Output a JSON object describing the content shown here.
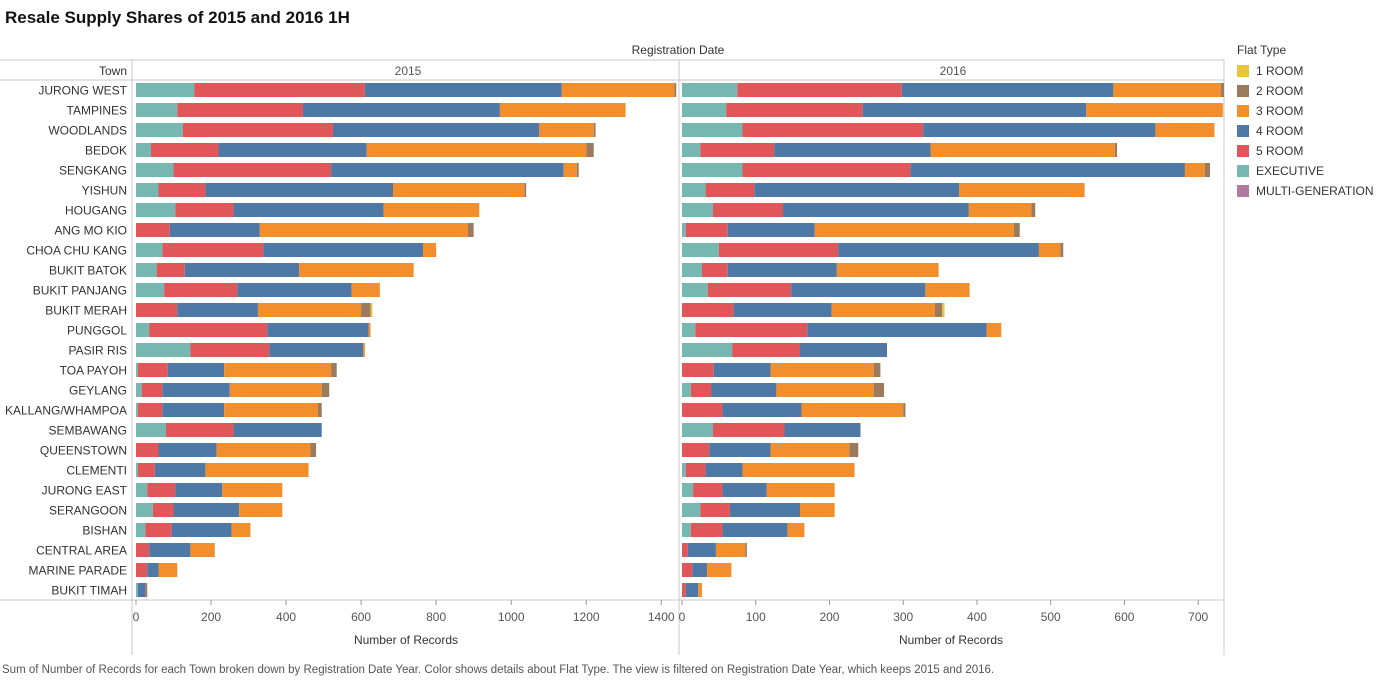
{
  "title": "Resale Supply Shares of 2015 and 2016 1H",
  "caption": "Sum of Number of Records for each Town broken down by Registration Date Year.  Color shows details about Flat Type. The view is filtered on Registration Date Year, which keeps 2015 and 2016.",
  "legend": {
    "title": "Flat Type",
    "items": [
      {
        "name": "1 ROOM",
        "color": "#e9c53b"
      },
      {
        "name": "2 ROOM",
        "color": "#9c7a5e"
      },
      {
        "name": "3 ROOM",
        "color": "#f28e2b"
      },
      {
        "name": "4 ROOM",
        "color": "#4e79a7"
      },
      {
        "name": "5 ROOM",
        "color": "#e15759"
      },
      {
        "name": "EXECUTIVE",
        "color": "#76b7b2"
      },
      {
        "name": "MULTI-GENERATION",
        "color": "#b07aa1"
      }
    ]
  },
  "chart_data": {
    "type": "bar",
    "orientation": "horizontal",
    "stacked": true,
    "column_header": "Registration Date",
    "row_header": "Town",
    "xlabel": "Number of Records",
    "stack_order": [
      "EXECUTIVE",
      "5 ROOM",
      "4 ROOM",
      "3 ROOM",
      "2 ROOM",
      "1 ROOM",
      "MULTI-GENERATION"
    ],
    "categories": [
      "JURONG WEST",
      "TAMPINES",
      "WOODLANDS",
      "BEDOK",
      "SENGKANG",
      "YISHUN",
      "HOUGANG",
      "ANG MO KIO",
      "CHOA CHU KANG",
      "BUKIT BATOK",
      "BUKIT PANJANG",
      "BUKIT MERAH",
      "PUNGGOL",
      "PASIR RIS",
      "TOA PAYOH",
      "GEYLANG",
      "KALLANG/WHAMPOA",
      "SEMBAWANG",
      "QUEENSTOWN",
      "CLEMENTI",
      "JURONG EAST",
      "SERANGOON",
      "BISHAN",
      "CENTRAL AREA",
      "MARINE PARADE",
      "BUKIT TIMAH"
    ],
    "panels": [
      {
        "label": "2015",
        "xlim": [
          0,
          1450
        ],
        "ticks": [
          0,
          200,
          400,
          600,
          800,
          1000,
          1200,
          1400
        ],
        "series": [
          {
            "name": "EXECUTIVE",
            "values": [
              155,
              110,
              125,
              40,
              100,
              60,
              105,
              0,
              70,
              55,
              75,
              0,
              35,
              145,
              5,
              15,
              5,
              80,
              0,
              5,
              30,
              45,
              25,
              0,
              0,
              5
            ]
          },
          {
            "name": "5 ROOM",
            "values": [
              455,
              335,
              400,
              180,
              420,
              125,
              155,
              90,
              270,
              75,
              195,
              110,
              315,
              210,
              80,
              55,
              65,
              180,
              60,
              45,
              75,
              55,
              70,
              35,
              30,
              0
            ]
          },
          {
            "name": "4 ROOM",
            "values": [
              525,
              525,
              550,
              395,
              620,
              500,
              400,
              240,
              425,
              305,
              305,
              215,
              270,
              250,
              150,
              180,
              165,
              235,
              155,
              135,
              125,
              175,
              160,
              110,
              30,
              20
            ]
          },
          {
            "name": "3 ROOM",
            "values": [
              300,
              335,
              145,
              585,
              35,
              350,
              255,
              555,
              35,
              305,
              75,
              275,
              5,
              5,
              285,
              245,
              250,
              0,
              250,
              275,
              160,
              115,
              50,
              65,
              50,
              0
            ]
          },
          {
            "name": "2 ROOM",
            "values": [
              5,
              0,
              5,
              20,
              5,
              5,
              0,
              15,
              0,
              0,
              0,
              25,
              0,
              0,
              15,
              20,
              10,
              0,
              15,
              0,
              0,
              0,
              0,
              0,
              0,
              5
            ]
          },
          {
            "name": "1 ROOM",
            "values": [
              0,
              0,
              0,
              0,
              0,
              0,
              0,
              0,
              0,
              0,
              0,
              5,
              0,
              0,
              0,
              0,
              0,
              0,
              0,
              0,
              0,
              0,
              0,
              0,
              0,
              0
            ]
          },
          {
            "name": "MULTI-GENERATION",
            "values": [
              0,
              0,
              0,
              0,
              0,
              0,
              0,
              0,
              0,
              0,
              0,
              0,
              0,
              0,
              0,
              0,
              0,
              0,
              0,
              0,
              0,
              0,
              0,
              0,
              0,
              0
            ]
          }
        ]
      },
      {
        "label": "2016",
        "xlim": [
          0,
          735
        ],
        "ticks": [
          0,
          100,
          200,
          300,
          400,
          500,
          600,
          700
        ],
        "series": [
          {
            "name": "EXECUTIVE",
            "values": [
              75,
              60,
              82,
              25,
              82,
              32,
              42,
              5,
              50,
              27,
              35,
              0,
              18,
              68,
              0,
              12,
              0,
              42,
              0,
              5,
              15,
              25,
              12,
              0,
              0,
              0
            ]
          },
          {
            "name": "5 ROOM",
            "values": [
              223,
              185,
              245,
              100,
              228,
              66,
              95,
              57,
              162,
              35,
              113,
              70,
              152,
              92,
              43,
              28,
              55,
              97,
              37,
              27,
              40,
              40,
              43,
              8,
              14,
              5
            ]
          },
          {
            "name": "4 ROOM",
            "values": [
              287,
              303,
              315,
              212,
              372,
              278,
              252,
              118,
              272,
              148,
              182,
              133,
              243,
              118,
              77,
              88,
              107,
              103,
              83,
              50,
              60,
              95,
              88,
              38,
              20,
              17
            ]
          },
          {
            "name": "3 ROOM",
            "values": [
              146,
              185,
              80,
              250,
              27,
              170,
              85,
              270,
              29,
              138,
              60,
              140,
              20,
              0,
              140,
              132,
              138,
              0,
              107,
              152,
              92,
              47,
              23,
              40,
              33,
              5
            ]
          },
          {
            "name": "2 ROOM",
            "values": [
              4,
              0,
              0,
              3,
              7,
              0,
              5,
              8,
              4,
              0,
              0,
              10,
              0,
              0,
              9,
              14,
              3,
              0,
              12,
              0,
              0,
              0,
              0,
              2,
              0,
              0
            ]
          },
          {
            "name": "1 ROOM",
            "values": [
              0,
              1,
              0,
              0,
              0,
              0,
              0,
              0,
              0,
              0,
              0,
              3,
              0,
              0,
              0,
              0,
              0,
              0,
              0,
              0,
              0,
              0,
              0,
              0,
              0,
              0
            ]
          },
          {
            "name": "MULTI-GENERATION",
            "values": [
              0,
              0,
              0,
              0,
              0,
              0,
              0,
              0,
              0,
              0,
              0,
              0,
              0,
              0,
              0,
              0,
              0,
              0,
              0,
              0,
              0,
              0,
              0,
              0,
              0,
              0
            ]
          }
        ]
      }
    ]
  }
}
